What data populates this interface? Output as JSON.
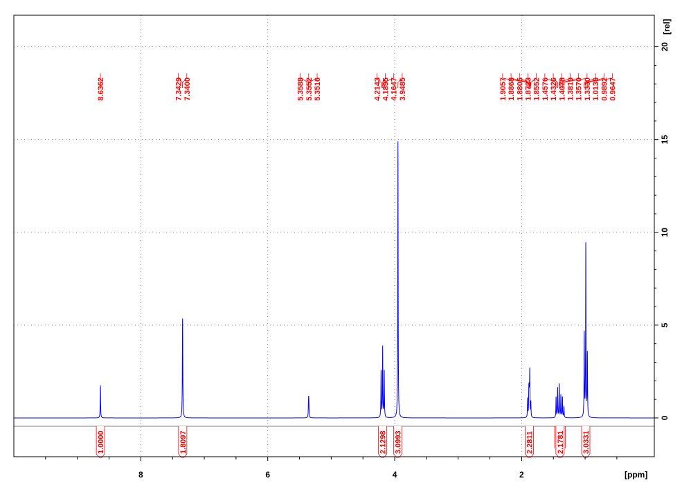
{
  "chart_data": {
    "type": "line",
    "title": "",
    "xlabel": "[ppm]",
    "ylabel": "[rel]",
    "xlim": [
      10.0,
      -0.09
    ],
    "ylim": [
      -2.09,
      21.7
    ],
    "x_ticks": [
      8,
      6,
      4,
      2
    ],
    "x_tick_labels": [
      "8",
      "6",
      "4",
      "2"
    ],
    "y_ticks": [
      0,
      5,
      10,
      15,
      20
    ],
    "y_tick_labels": [
      "0",
      "5",
      "10",
      "15",
      "20"
    ],
    "grid": true,
    "colors": {
      "spectrum": "#0000ff",
      "annotation": "#ff0000",
      "axis": "#000000",
      "grid": "#808080"
    },
    "peaks": [
      {
        "ppm": 8.6362,
        "label": "8.6362",
        "height": 1.75
      },
      {
        "ppm": 7.3429,
        "label": "7.3429",
        "height": 3.1
      },
      {
        "ppm": 7.34,
        "label": "7.3400",
        "height": 3.2
      },
      {
        "ppm": 5.3588,
        "label": "5.3588",
        "height": 0.5
      },
      {
        "ppm": 5.3552,
        "label": "5.3552",
        "height": 0.7
      },
      {
        "ppm": 5.3516,
        "label": "5.3516",
        "height": 0.5
      },
      {
        "ppm": 4.2143,
        "label": "4.2143",
        "height": 2.5
      },
      {
        "ppm": 4.1895,
        "label": "4.1895",
        "height": 3.8
      },
      {
        "ppm": 4.1647,
        "label": "4.1647",
        "height": 2.5
      },
      {
        "ppm": 3.9485,
        "label": "3.9485",
        "height": 14.9
      },
      {
        "ppm": 1.9057,
        "label": "1.9057",
        "height": 1.0
      },
      {
        "ppm": 1.8868,
        "label": "1.8868",
        "height": 1.4
      },
      {
        "ppm": 1.8805,
        "label": "1.8805",
        "height": 1.2
      },
      {
        "ppm": 1.8723,
        "label": "1.8723",
        "height": 2.4
      },
      {
        "ppm": 1.8552,
        "label": "1.8552",
        "height": 0.8
      },
      {
        "ppm": 1.4576,
        "label": "1.4576",
        "height": 1.1
      },
      {
        "ppm": 1.4326,
        "label": "1.4326",
        "height": 1.6
      },
      {
        "ppm": 1.4078,
        "label": "1.4078",
        "height": 1.8
      },
      {
        "ppm": 1.3819,
        "label": "1.3819",
        "height": 1.2
      },
      {
        "ppm": 1.357,
        "label": "1.3570",
        "height": 1.1
      },
      {
        "ppm": 1.333,
        "label": "1.3330",
        "height": 0.6
      },
      {
        "ppm": 1.0136,
        "label": "1.0136",
        "height": 4.5
      },
      {
        "ppm": 0.9892,
        "label": "0.9892",
        "height": 9.3
      },
      {
        "ppm": 0.9647,
        "label": "0.9647",
        "height": 3.4
      }
    ],
    "integrals": [
      {
        "from": 8.66,
        "to": 8.61,
        "value": "1.0000"
      },
      {
        "from": 7.37,
        "to": 7.31,
        "value": "1.8097"
      },
      {
        "from": 4.24,
        "to": 4.14,
        "value": "2.1298"
      },
      {
        "from": 3.98,
        "to": 3.92,
        "value": "3.0993"
      },
      {
        "from": 1.93,
        "to": 1.83,
        "value": "2.2811"
      },
      {
        "from": 1.48,
        "to": 1.31,
        "value": "2.1781"
      },
      {
        "from": 1.04,
        "to": 0.94,
        "value": "3.0331"
      }
    ]
  }
}
